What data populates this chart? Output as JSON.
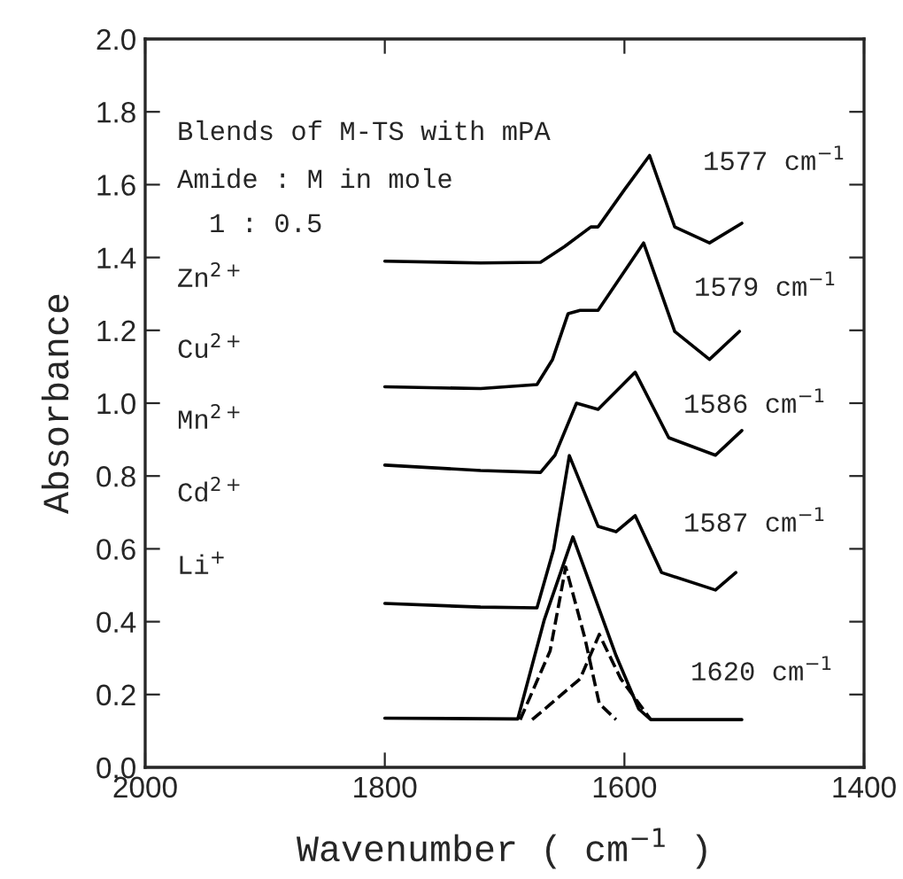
{
  "chart_data": {
    "type": "line",
    "xlabel": "Wavenumber ( cm$^{−1}$ )",
    "ylabel": "Absorbance",
    "xlim": [
      2000,
      1400
    ],
    "xticks": [
      2000,
      1800,
      1600,
      1400
    ],
    "ylim": [
      0,
      2.0
    ],
    "yticks": [
      {
        "value": 0,
        "label": "0.0"
      },
      {
        "value": 0.2,
        "label": "0.2"
      },
      {
        "value": 0.4,
        "label": "0.4"
      },
      {
        "value": 0.6,
        "label": "0.6"
      },
      {
        "value": 0.8,
        "label": "0.8"
      },
      {
        "value": 1.0,
        "label": "1.0"
      },
      {
        "value": 1.2,
        "label": "1.2"
      },
      {
        "value": 1.4,
        "label": "1.4"
      },
      {
        "value": 1.6,
        "label": "1.6"
      },
      {
        "value": 1.8,
        "label": "1.8"
      },
      {
        "value": 2.0,
        "label": "2.0"
      }
    ],
    "grid": false,
    "legend": false,
    "marker": "none",
    "series": [
      {
        "color": "#000000",
        "line_style": "solid",
        "x": [
          1800,
          1720,
          1670,
          1650,
          1628,
          1622,
          1600,
          1579,
          1558,
          1529,
          1502
        ],
        "values": [
          1.39,
          1.385,
          1.387,
          1.43,
          1.484,
          1.484,
          1.586,
          1.68,
          1.484,
          1.44,
          1.494
        ]
      },
      {
        "color": "#000000",
        "line_style": "solid",
        "x": [
          1800,
          1720,
          1673,
          1660,
          1647,
          1637,
          1622,
          1584,
          1558,
          1529,
          1504
        ],
        "values": [
          1.045,
          1.04,
          1.051,
          1.12,
          1.246,
          1.255,
          1.255,
          1.44,
          1.197,
          1.12,
          1.197
        ]
      },
      {
        "color": "#000000",
        "line_style": "solid",
        "x": [
          1800,
          1720,
          1670,
          1658,
          1640,
          1622,
          1591,
          1563,
          1524,
          1502
        ],
        "values": [
          0.83,
          0.815,
          0.81,
          0.857,
          1.0,
          0.983,
          1.085,
          0.905,
          0.857,
          0.925
        ]
      },
      {
        "color": "#000000",
        "line_style": "solid",
        "x": [
          1800,
          1720,
          1673,
          1659,
          1646,
          1622,
          1607,
          1591,
          1569,
          1524,
          1507
        ],
        "values": [
          0.45,
          0.44,
          0.438,
          0.6,
          0.856,
          0.662,
          0.647,
          0.691,
          0.535,
          0.487,
          0.535
        ]
      },
      {
        "color": "#000000",
        "line_style": "solid",
        "x": [
          1800,
          1689,
          1667,
          1643,
          1607,
          1588,
          1578,
          1502
        ],
        "values": [
          0.135,
          0.133,
          0.404,
          0.633,
          0.307,
          0.16,
          0.131,
          0.131
        ]
      },
      {
        "color": "#000000",
        "line_style": "dashed",
        "x": [
          1687,
          1662,
          1649,
          1633,
          1621,
          1607
        ],
        "values": [
          0.131,
          0.32,
          0.55,
          0.355,
          0.175,
          0.131
        ]
      },
      {
        "color": "#000000",
        "line_style": "dashed",
        "x": [
          1677,
          1637,
          1621,
          1603,
          1578
        ],
        "values": [
          0.131,
          0.243,
          0.365,
          0.243,
          0.131
        ]
      }
    ],
    "annotations": [
      "Blends of M-TS with mPA",
      "Amide : M in mole",
      "1 : 0.5",
      "Zn$^{2+}$",
      "Cu$^{2+}$",
      "Mn$^{2+}$",
      "Cd$^{2+}$",
      "Li$^{+}$",
      "1577 cm$^{−1}$",
      "1579 cm$^{−1}$",
      "1586 cm$^{−1}$",
      "1587 cm$^{−1}$",
      "1620 cm$^{−1}$"
    ]
  }
}
